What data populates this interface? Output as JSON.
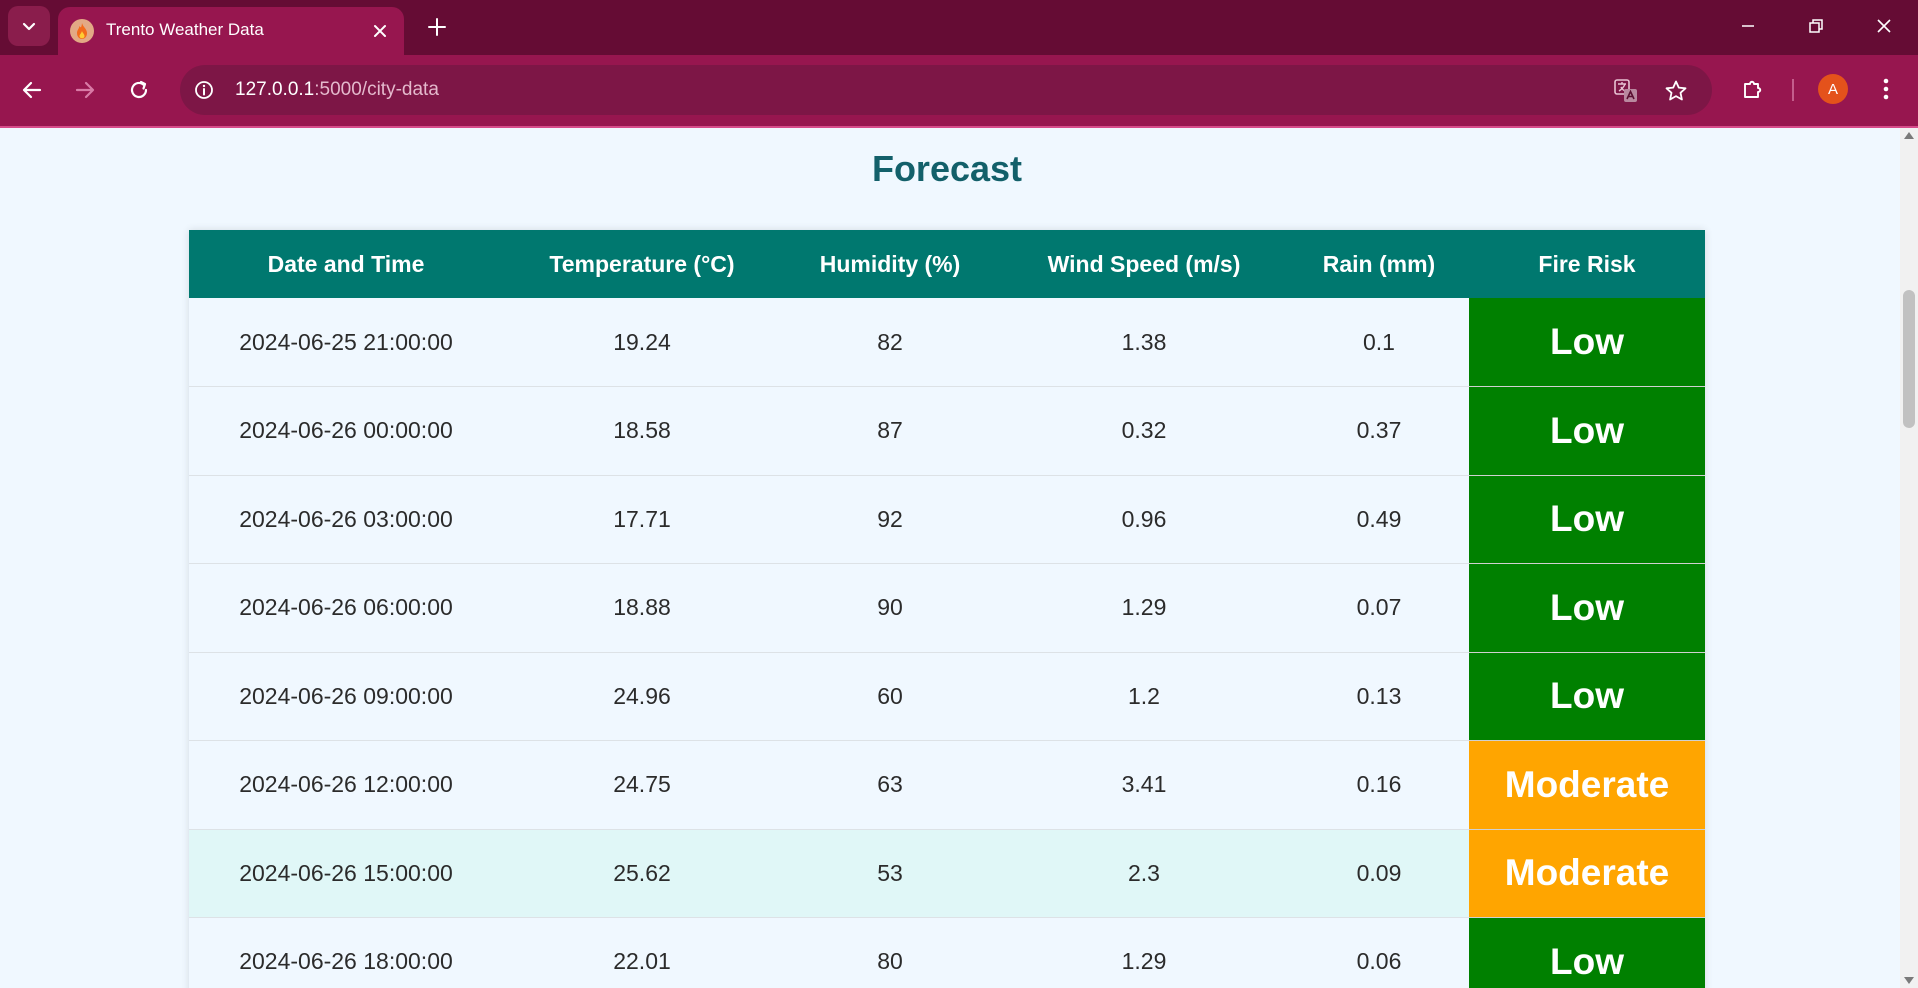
{
  "browser": {
    "tab_title": "Trento Weather Data",
    "url_host": "127.0.0.1",
    "url_rest": ":5000/city-data",
    "profile_initial": "A"
  },
  "page": {
    "heading": "Forecast"
  },
  "table": {
    "columns": [
      "Date and Time",
      "Temperature (°C)",
      "Humidity (%)",
      "Wind Speed (m/s)",
      "Rain (mm)",
      "Fire Risk"
    ],
    "rows": [
      [
        "2024-06-25 21:00:00",
        "19.24",
        "82",
        "1.38",
        "0.1",
        "Low"
      ],
      [
        "2024-06-26 00:00:00",
        "18.58",
        "87",
        "0.32",
        "0.37",
        "Low"
      ],
      [
        "2024-06-26 03:00:00",
        "17.71",
        "92",
        "0.96",
        "0.49",
        "Low"
      ],
      [
        "2024-06-26 06:00:00",
        "18.88",
        "90",
        "1.29",
        "0.07",
        "Low"
      ],
      [
        "2024-06-26 09:00:00",
        "24.96",
        "60",
        "1.2",
        "0.13",
        "Low"
      ],
      [
        "2024-06-26 12:00:00",
        "24.75",
        "63",
        "3.41",
        "0.16",
        "Moderate"
      ],
      [
        "2024-06-26 15:00:00",
        "25.62",
        "53",
        "2.3",
        "0.09",
        "Moderate"
      ],
      [
        "2024-06-26 18:00:00",
        "22.01",
        "80",
        "1.29",
        "0.06",
        "Low"
      ]
    ],
    "highlighted_row": 6
  },
  "colors": {
    "header_bg": "#00786f",
    "risk_low": "#008000",
    "risk_moderate": "#ffa500",
    "heading": "#13606a",
    "browser_frame": "#650c34",
    "browser_toolbar": "#97164f"
  },
  "icons": [
    "tab-search-icon",
    "fire-icon",
    "close-icon",
    "plus-icon",
    "minimize-icon",
    "restore-icon",
    "window-close-icon",
    "back-arrow-icon",
    "forward-arrow-icon",
    "reload-icon",
    "site-info-icon",
    "translate-icon",
    "star-icon",
    "extensions-icon",
    "more-menu-icon"
  ]
}
